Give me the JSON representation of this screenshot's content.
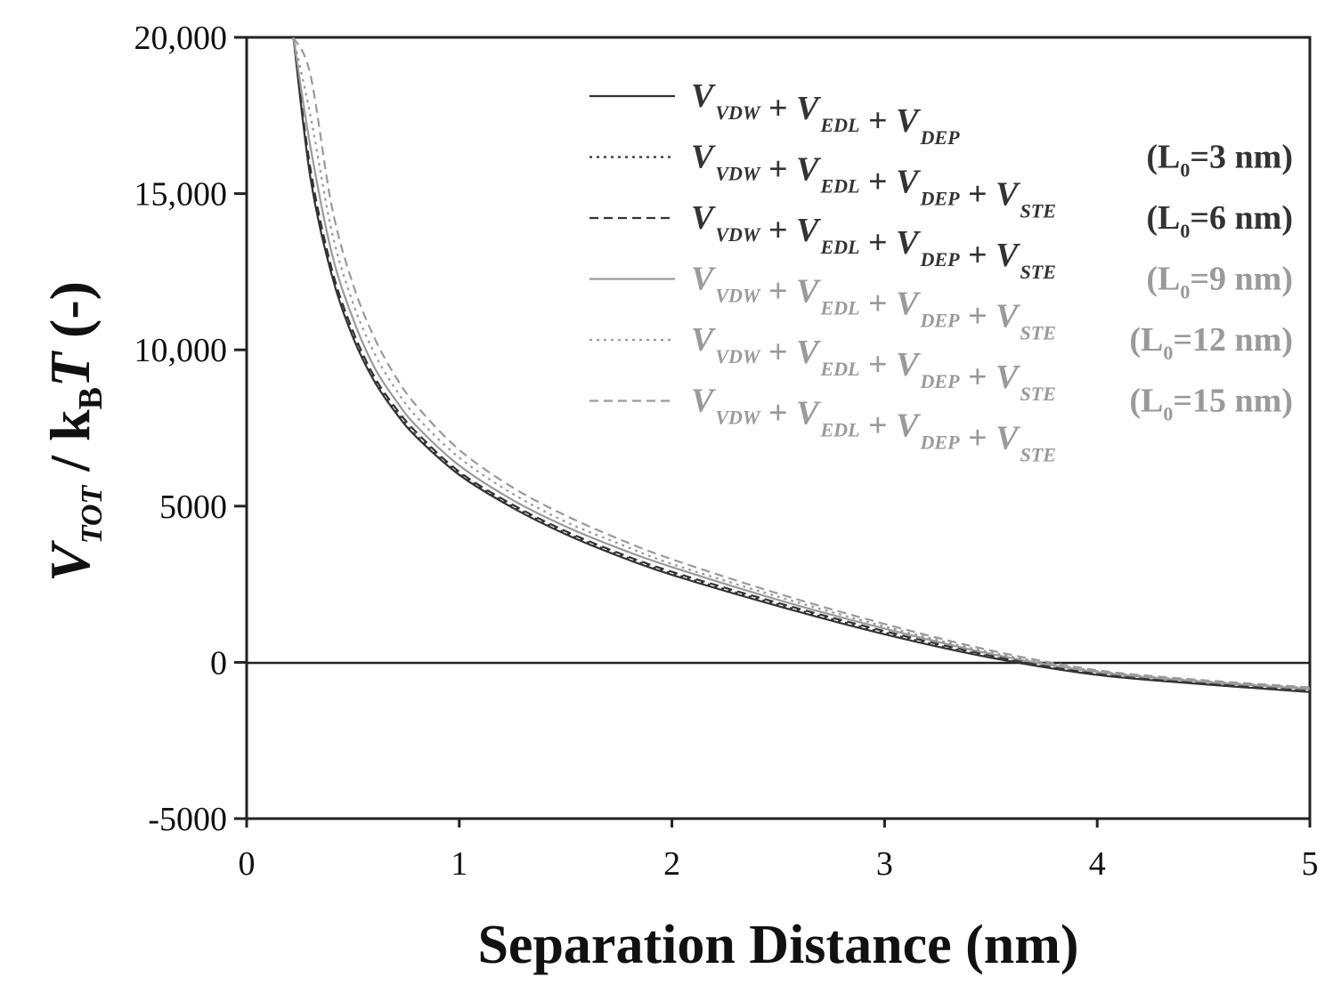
{
  "chart_data": {
    "type": "line",
    "xlabel": "Separation Distance (nm)",
    "ylabel": {
      "prefix": "V",
      "prefix_sub": "TOT",
      "slash": " / k",
      "k_sub": "B",
      "T": "T",
      "suffix": " (-)"
    },
    "xlim": [
      0,
      5
    ],
    "ylim": [
      -5000,
      20000
    ],
    "x_ticks": [
      "0",
      "1",
      "2",
      "3",
      "4",
      "5"
    ],
    "y_ticks": [
      "-5000",
      "0",
      "5000",
      "10,000",
      "15,000",
      "20,000"
    ],
    "zero_line": true,
    "grid": false,
    "legend_position": "top-right",
    "x": [
      0.22,
      0.3,
      0.4,
      0.5,
      0.6,
      0.7,
      0.8,
      1.0,
      1.25,
      1.5,
      1.75,
      2.0,
      2.5,
      3.0,
      3.5,
      4.0,
      4.5,
      5.0
    ],
    "series": [
      {
        "name": "V_VDW + V_EDL + V_DEP",
        "style": "solid",
        "color": "#333333",
        "values": [
          20000,
          15500,
          12400,
          10400,
          9000,
          8000,
          7200,
          6000,
          4950,
          4100,
          3400,
          2800,
          1800,
          900,
          150,
          -400,
          -700,
          -950
        ]
      },
      {
        "name": "V_VDW + V_EDL + V_DEP + V_STE (L0=3 nm)",
        "style": "dotted",
        "color": "#333333",
        "values": [
          20000,
          15600,
          12450,
          10450,
          9050,
          8050,
          7250,
          6050,
          5000,
          4150,
          3450,
          2850,
          1850,
          950,
          180,
          -380,
          -680,
          -920
        ]
      },
      {
        "name": "V_VDW + V_EDL + V_DEP + V_STE (L0=6 nm)",
        "style": "dashed",
        "color": "#333333",
        "values": [
          20000,
          15800,
          12600,
          10600,
          9150,
          8150,
          7350,
          6100,
          5050,
          4200,
          3500,
          2900,
          1900,
          1000,
          220,
          -350,
          -650,
          -880
        ]
      },
      {
        "name": "V_VDW + V_EDL + V_DEP + V_STE (L0=9 nm)",
        "style": "solid",
        "color": "#9a9a9a",
        "values": [
          20000,
          16500,
          13100,
          11000,
          9450,
          8400,
          7550,
          6300,
          5200,
          4350,
          3650,
          3050,
          2000,
          1080,
          270,
          -310,
          -620,
          -850
        ]
      },
      {
        "name": "V_VDW + V_EDL + V_DEP + V_STE (L0=12 nm)",
        "style": "dotted",
        "color": "#9a9a9a",
        "values": [
          20000,
          17500,
          13800,
          11500,
          9900,
          8750,
          7850,
          6550,
          5400,
          4500,
          3800,
          3150,
          2100,
          1150,
          320,
          -280,
          -600,
          -820
        ]
      },
      {
        "name": "V_VDW + V_EDL + V_DEP + V_STE (L0=15 nm)",
        "style": "dashed",
        "color": "#9a9a9a",
        "values": [
          20000,
          18800,
          14600,
          12100,
          10400,
          9150,
          8200,
          6800,
          5600,
          4700,
          3950,
          3300,
          2200,
          1230,
          380,
          -250,
          -570,
          -800
        ]
      }
    ],
    "legend": [
      {
        "sym": "solid",
        "color": "#333333",
        "terms": [
          [
            "V",
            "VDW"
          ],
          [
            "V",
            "EDL"
          ],
          [
            "V",
            "DEP"
          ]
        ],
        "tail": ""
      },
      {
        "sym": "dotted",
        "color": "#333333",
        "terms": [
          [
            "V",
            "VDW"
          ],
          [
            "V",
            "EDL"
          ],
          [
            "V",
            "DEP"
          ],
          [
            "V",
            "STE"
          ]
        ],
        "tail_pre": "(L",
        "tail_sub": "0",
        "tail_post": "=3 nm)"
      },
      {
        "sym": "dashed",
        "color": "#333333",
        "terms": [
          [
            "V",
            "VDW"
          ],
          [
            "V",
            "EDL"
          ],
          [
            "V",
            "DEP"
          ],
          [
            "V",
            "STE"
          ]
        ],
        "tail_pre": "(L",
        "tail_sub": "0",
        "tail_post": "=6 nm)"
      },
      {
        "sym": "solid",
        "color": "#9a9a9a",
        "terms": [
          [
            "V",
            "VDW"
          ],
          [
            "V",
            "EDL"
          ],
          [
            "V",
            "DEP"
          ],
          [
            "V",
            "STE"
          ]
        ],
        "tail_pre": "(L",
        "tail_sub": "0",
        "tail_post": "=9 nm)"
      },
      {
        "sym": "dotted",
        "color": "#9a9a9a",
        "terms": [
          [
            "V",
            "VDW"
          ],
          [
            "V",
            "EDL"
          ],
          [
            "V",
            "DEP"
          ],
          [
            "V",
            "STE"
          ]
        ],
        "tail_pre": "(L",
        "tail_sub": "0",
        "tail_post": "=12 nm)"
      },
      {
        "sym": "dashed",
        "color": "#9a9a9a",
        "terms": [
          [
            "V",
            "VDW"
          ],
          [
            "V",
            "EDL"
          ],
          [
            "V",
            "DEP"
          ],
          [
            "V",
            "STE"
          ]
        ],
        "tail_pre": "(L",
        "tail_sub": "0",
        "tail_post": "=15 nm)"
      }
    ]
  }
}
